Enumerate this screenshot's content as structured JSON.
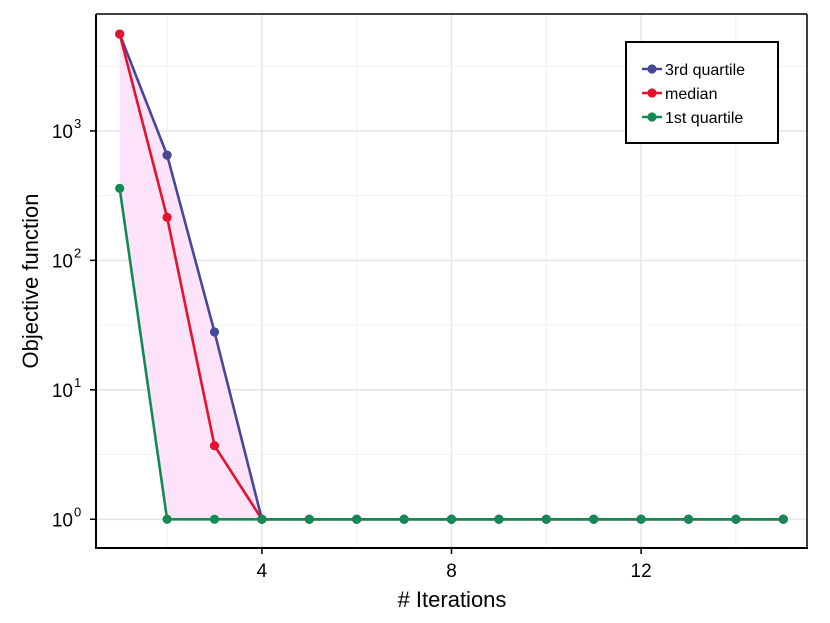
{
  "chart_data": {
    "type": "line",
    "xlabel": "# Iterations",
    "ylabel": "Objective function",
    "y_scale": "log",
    "xlim": [
      0.5,
      15.5
    ],
    "ylim": [
      0.6,
      8000
    ],
    "x_ticks": [
      4,
      8,
      12
    ],
    "y_ticks": [
      {
        "base": "10",
        "exp": "0",
        "value": 1
      },
      {
        "base": "10",
        "exp": "1",
        "value": 10
      },
      {
        "base": "10",
        "exp": "2",
        "value": 100
      },
      {
        "base": "10",
        "exp": "3",
        "value": 1000
      }
    ],
    "grid": true,
    "legend_position": "top-right",
    "shaded_band": {
      "between": [
        "3rd quartile",
        "1st quartile"
      ],
      "color": "#fde3fa"
    },
    "x": [
      1,
      2,
      3,
      4,
      5,
      6,
      7,
      8,
      9,
      10,
      11,
      12,
      13,
      14,
      15
    ],
    "series": [
      {
        "name": "3rd quartile",
        "color": "#45479a",
        "values": [
          5600,
          650,
          28,
          1,
          1,
          1,
          1,
          1,
          1,
          1,
          1,
          1,
          1,
          1,
          1
        ]
      },
      {
        "name": "median",
        "color": "#e8112d",
        "values": [
          5600,
          215,
          3.7,
          1,
          1,
          1,
          1,
          1,
          1,
          1,
          1,
          1,
          1,
          1,
          1
        ]
      },
      {
        "name": "1st quartile",
        "color": "#128a52",
        "values": [
          360,
          1,
          1,
          1,
          1,
          1,
          1,
          1,
          1,
          1,
          1,
          1,
          1,
          1,
          1
        ]
      }
    ]
  }
}
